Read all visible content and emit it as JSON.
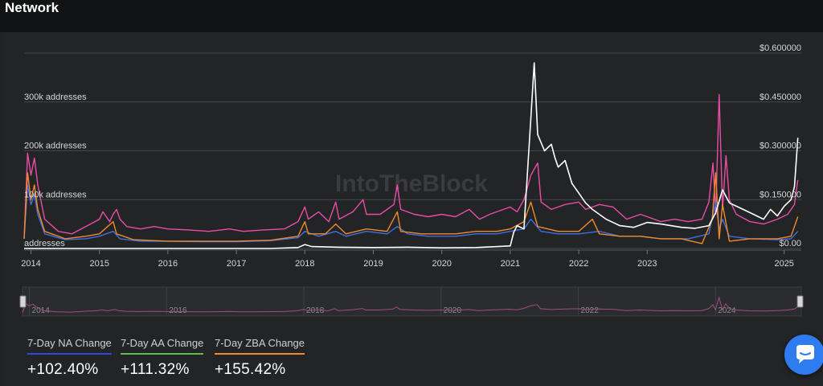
{
  "header": {
    "title": "Network"
  },
  "watermark": "IntoTheBlock",
  "colors": {
    "na": "#3f6fe0",
    "aa": "#e84da6",
    "zba": "#f08a2c",
    "price": "#ffffff",
    "aa_underline": "#5dbb4a"
  },
  "chart_data": {
    "type": "line",
    "x_range": [
      2013.9,
      2025.25
    ],
    "x_ticks": [
      "2014",
      "2015",
      "2016",
      "2017",
      "2018",
      "2019",
      "2020",
      "2021",
      "2022",
      "2023",
      "2025"
    ],
    "x_tick_values": [
      2014,
      2015,
      2016,
      2017,
      2018,
      2019,
      2020,
      2021,
      2022,
      2023,
      2025
    ],
    "y_left": {
      "range": [
        0,
        400000
      ],
      "ticks": [
        "addresses",
        "100k addresses",
        "200k addresses",
        "300k addresses"
      ],
      "tick_values": [
        0,
        100000,
        200000,
        300000
      ]
    },
    "y_right": {
      "range": [
        0,
        0.6
      ],
      "ticks": [
        "$0.00",
        "$0.150000",
        "$0.300000",
        "$0.450000",
        "$0.600000"
      ],
      "tick_values": [
        0,
        0.15,
        0.3,
        0.45,
        0.6
      ]
    },
    "grid": true,
    "navigator_ticks": [
      "2014",
      "2016",
      "2018",
      "2020",
      "2022",
      "2024"
    ],
    "navigator_tick_values": [
      2014,
      2016,
      2018,
      2020,
      2022,
      2024
    ],
    "series": [
      {
        "key": "aa",
        "axis": "left",
        "points": [
          [
            2013.9,
            20000
          ],
          [
            2013.95,
            195000
          ],
          [
            2014.0,
            150000
          ],
          [
            2014.05,
            185000
          ],
          [
            2014.1,
            130000
          ],
          [
            2014.2,
            60000
          ],
          [
            2014.4,
            35000
          ],
          [
            2014.6,
            30000
          ],
          [
            2014.8,
            45000
          ],
          [
            2015.0,
            60000
          ],
          [
            2015.05,
            75000
          ],
          [
            2015.15,
            55000
          ],
          [
            2015.2,
            70000
          ],
          [
            2015.25,
            80000
          ],
          [
            2015.3,
            60000
          ],
          [
            2015.4,
            45000
          ],
          [
            2015.6,
            40000
          ],
          [
            2015.8,
            45000
          ],
          [
            2016.0,
            40000
          ],
          [
            2016.3,
            38000
          ],
          [
            2016.6,
            35000
          ],
          [
            2016.9,
            40000
          ],
          [
            2017.1,
            35000
          ],
          [
            2017.4,
            38000
          ],
          [
            2017.7,
            40000
          ],
          [
            2017.9,
            55000
          ],
          [
            2018.0,
            85000
          ],
          [
            2018.05,
            60000
          ],
          [
            2018.2,
            75000
          ],
          [
            2018.35,
            55000
          ],
          [
            2018.45,
            95000
          ],
          [
            2018.5,
            60000
          ],
          [
            2018.7,
            75000
          ],
          [
            2018.85,
            100000
          ],
          [
            2018.9,
            70000
          ],
          [
            2019.1,
            70000
          ],
          [
            2019.3,
            90000
          ],
          [
            2019.35,
            130000
          ],
          [
            2019.4,
            80000
          ],
          [
            2019.6,
            70000
          ],
          [
            2019.8,
            65000
          ],
          [
            2020.0,
            70000
          ],
          [
            2020.2,
            65000
          ],
          [
            2020.4,
            80000
          ],
          [
            2020.55,
            60000
          ],
          [
            2020.7,
            70000
          ],
          [
            2020.9,
            80000
          ],
          [
            2021.0,
            85000
          ],
          [
            2021.1,
            75000
          ],
          [
            2021.2,
            100000
          ],
          [
            2021.3,
            150000
          ],
          [
            2021.4,
            175000
          ],
          [
            2021.45,
            95000
          ],
          [
            2021.6,
            80000
          ],
          [
            2021.8,
            90000
          ],
          [
            2022.0,
            95000
          ],
          [
            2022.1,
            80000
          ],
          [
            2022.3,
            90000
          ],
          [
            2022.5,
            85000
          ],
          [
            2022.7,
            60000
          ],
          [
            2022.9,
            70000
          ],
          [
            2023.0,
            65000
          ],
          [
            2023.2,
            55000
          ],
          [
            2023.4,
            60000
          ],
          [
            2023.6,
            55000
          ],
          [
            2023.8,
            60000
          ],
          [
            2023.9,
            95000
          ],
          [
            2023.96,
            175000
          ],
          [
            2024.0,
            70000
          ],
          [
            2024.05,
            315000
          ],
          [
            2024.1,
            80000
          ],
          [
            2024.15,
            190000
          ],
          [
            2024.2,
            100000
          ],
          [
            2024.3,
            70000
          ],
          [
            2024.5,
            55000
          ],
          [
            2024.7,
            50000
          ],
          [
            2024.9,
            60000
          ],
          [
            2025.05,
            70000
          ],
          [
            2025.15,
            90000
          ],
          [
            2025.2,
            140000
          ]
        ]
      },
      {
        "key": "na",
        "axis": "left",
        "points": [
          [
            2013.9,
            20000
          ],
          [
            2013.95,
            130000
          ],
          [
            2014.0,
            90000
          ],
          [
            2014.05,
            110000
          ],
          [
            2014.1,
            70000
          ],
          [
            2014.2,
            30000
          ],
          [
            2014.5,
            18000
          ],
          [
            2014.8,
            20000
          ],
          [
            2015.0,
            25000
          ],
          [
            2015.2,
            35000
          ],
          [
            2015.3,
            20000
          ],
          [
            2015.6,
            15000
          ],
          [
            2016.0,
            15000
          ],
          [
            2016.5,
            14000
          ],
          [
            2017.0,
            14000
          ],
          [
            2017.5,
            16000
          ],
          [
            2017.9,
            22000
          ],
          [
            2018.0,
            35000
          ],
          [
            2018.2,
            25000
          ],
          [
            2018.45,
            35000
          ],
          [
            2018.6,
            25000
          ],
          [
            2018.9,
            35000
          ],
          [
            2019.2,
            30000
          ],
          [
            2019.35,
            45000
          ],
          [
            2019.5,
            30000
          ],
          [
            2019.8,
            25000
          ],
          [
            2020.2,
            25000
          ],
          [
            2020.5,
            30000
          ],
          [
            2020.8,
            30000
          ],
          [
            2021.0,
            35000
          ],
          [
            2021.2,
            40000
          ],
          [
            2021.3,
            60000
          ],
          [
            2021.45,
            35000
          ],
          [
            2021.7,
            30000
          ],
          [
            2022.0,
            30000
          ],
          [
            2022.3,
            35000
          ],
          [
            2022.6,
            25000
          ],
          [
            2022.9,
            25000
          ],
          [
            2023.2,
            20000
          ],
          [
            2023.6,
            20000
          ],
          [
            2023.9,
            30000
          ],
          [
            2024.0,
            95000
          ],
          [
            2024.05,
            40000
          ],
          [
            2024.1,
            60000
          ],
          [
            2024.2,
            25000
          ],
          [
            2024.5,
            20000
          ],
          [
            2024.9,
            18000
          ],
          [
            2025.1,
            20000
          ],
          [
            2025.2,
            35000
          ]
        ]
      },
      {
        "key": "zba",
        "axis": "left",
        "points": [
          [
            2013.9,
            20000
          ],
          [
            2013.95,
            155000
          ],
          [
            2014.0,
            100000
          ],
          [
            2014.05,
            130000
          ],
          [
            2014.1,
            80000
          ],
          [
            2014.2,
            35000
          ],
          [
            2014.5,
            20000
          ],
          [
            2014.8,
            25000
          ],
          [
            2015.0,
            30000
          ],
          [
            2015.2,
            55000
          ],
          [
            2015.25,
            30000
          ],
          [
            2015.5,
            18000
          ],
          [
            2016.0,
            15000
          ],
          [
            2016.5,
            15000
          ],
          [
            2017.0,
            15000
          ],
          [
            2017.5,
            17000
          ],
          [
            2017.9,
            25000
          ],
          [
            2018.0,
            55000
          ],
          [
            2018.05,
            30000
          ],
          [
            2018.3,
            30000
          ],
          [
            2018.45,
            50000
          ],
          [
            2018.6,
            30000
          ],
          [
            2018.9,
            40000
          ],
          [
            2019.2,
            35000
          ],
          [
            2019.35,
            75000
          ],
          [
            2019.4,
            35000
          ],
          [
            2019.7,
            30000
          ],
          [
            2020.2,
            30000
          ],
          [
            2020.5,
            35000
          ],
          [
            2020.8,
            35000
          ],
          [
            2021.0,
            40000
          ],
          [
            2021.2,
            55000
          ],
          [
            2021.3,
            95000
          ],
          [
            2021.4,
            45000
          ],
          [
            2021.7,
            35000
          ],
          [
            2022.0,
            35000
          ],
          [
            2022.2,
            60000
          ],
          [
            2022.3,
            30000
          ],
          [
            2022.6,
            25000
          ],
          [
            2022.9,
            25000
          ],
          [
            2023.2,
            20000
          ],
          [
            2023.5,
            20000
          ],
          [
            2023.8,
            10000
          ],
          [
            2023.95,
            60000
          ],
          [
            2024.0,
            155000
          ],
          [
            2024.05,
            20000
          ],
          [
            2024.1,
            90000
          ],
          [
            2024.2,
            15000
          ],
          [
            2024.5,
            20000
          ],
          [
            2024.9,
            20000
          ],
          [
            2025.1,
            25000
          ],
          [
            2025.2,
            65000
          ]
        ]
      },
      {
        "key": "price",
        "axis": "right",
        "points": [
          [
            2013.9,
            0.0
          ],
          [
            2014.5,
            0.0
          ],
          [
            2015.5,
            0.0
          ],
          [
            2016.5,
            0.0
          ],
          [
            2017.5,
            0.0
          ],
          [
            2017.9,
            0.003
          ],
          [
            2018.0,
            0.012
          ],
          [
            2018.1,
            0.006
          ],
          [
            2018.5,
            0.004
          ],
          [
            2019.0,
            0.003
          ],
          [
            2019.5,
            0.004
          ],
          [
            2020.0,
            0.002
          ],
          [
            2020.5,
            0.003
          ],
          [
            2021.0,
            0.008
          ],
          [
            2021.05,
            0.05
          ],
          [
            2021.1,
            0.07
          ],
          [
            2021.2,
            0.06
          ],
          [
            2021.3,
            0.4
          ],
          [
            2021.35,
            0.57
          ],
          [
            2021.4,
            0.35
          ],
          [
            2021.5,
            0.3
          ],
          [
            2021.6,
            0.32
          ],
          [
            2021.65,
            0.28
          ],
          [
            2021.7,
            0.25
          ],
          [
            2021.8,
            0.27
          ],
          [
            2021.9,
            0.2
          ],
          [
            2022.0,
            0.17
          ],
          [
            2022.1,
            0.14
          ],
          [
            2022.2,
            0.12
          ],
          [
            2022.4,
            0.09
          ],
          [
            2022.6,
            0.07
          ],
          [
            2022.8,
            0.065
          ],
          [
            2023.0,
            0.08
          ],
          [
            2023.2,
            0.075
          ],
          [
            2023.5,
            0.065
          ],
          [
            2023.7,
            0.062
          ],
          [
            2023.9,
            0.07
          ],
          [
            2024.0,
            0.11
          ],
          [
            2024.1,
            0.18
          ],
          [
            2024.2,
            0.14
          ],
          [
            2024.3,
            0.13
          ],
          [
            2024.5,
            0.11
          ],
          [
            2024.7,
            0.09
          ],
          [
            2024.8,
            0.12
          ],
          [
            2024.9,
            0.1
          ],
          [
            2025.0,
            0.13
          ],
          [
            2025.1,
            0.15
          ],
          [
            2025.15,
            0.19
          ],
          [
            2025.2,
            0.34
          ]
        ]
      }
    ]
  },
  "metrics": [
    {
      "label": "7-Day NA Change",
      "value": "+102.40%",
      "color": "#2d4bd8"
    },
    {
      "label": "7-Day AA Change",
      "value": "+111.32%",
      "color": "#5dbb4a"
    },
    {
      "label": "7-Day ZBA Change",
      "value": "+155.42%",
      "color": "#f08a2c"
    }
  ]
}
